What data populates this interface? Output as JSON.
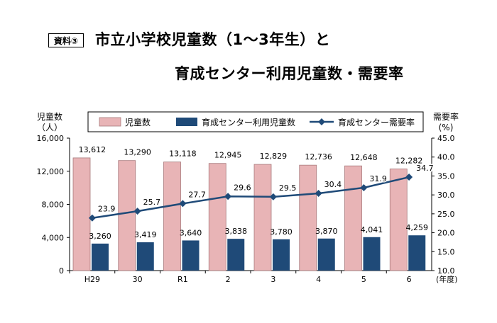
{
  "header": {
    "badge": "資料③",
    "title_line1": "市立小学校児童数（1〜3年生）と",
    "title_line2": "育成センター利用児童数・需要率"
  },
  "colors": {
    "children_bar": "#e8b4b6",
    "children_bar_stroke": "#a87a7c",
    "users_bar": "#1f4a78",
    "rate_line": "#1f4a78"
  },
  "chart_data": {
    "type": "bar",
    "categories": [
      "H29",
      "30",
      "R1",
      "2",
      "3",
      "4",
      "5",
      "6"
    ],
    "x_unit": "(年度)",
    "left_axis": {
      "label": "児童数",
      "unit": "（人）",
      "ylim": [
        0,
        16000
      ],
      "ticks": [
        "0",
        "4,000",
        "8,000",
        "12,000",
        "16,000"
      ]
    },
    "right_axis": {
      "label": "需要率",
      "unit": "(%)",
      "ylim": [
        10,
        45
      ],
      "ticks": [
        "10.0",
        "15.0",
        "20.0",
        "25.0",
        "30.0",
        "35.0",
        "40.0",
        "45.0"
      ]
    },
    "series": [
      {
        "name": "児童数",
        "type": "bar",
        "axis": "left",
        "values": [
          13612,
          13290,
          13118,
          12945,
          12829,
          12736,
          12648,
          12282
        ],
        "labels": [
          "13,612",
          "13,290",
          "13,118",
          "12,945",
          "12,829",
          "12,736",
          "12,648",
          "12,282"
        ]
      },
      {
        "name": "育成センター利用児童数",
        "type": "bar",
        "axis": "left",
        "values": [
          3260,
          3419,
          3640,
          3838,
          3780,
          3870,
          4041,
          4259
        ],
        "labels": [
          "3,260",
          "3,419",
          "3,640",
          "3,838",
          "3,780",
          "3,870",
          "4,041",
          "4,259"
        ]
      },
      {
        "name": "育成センター需要率",
        "type": "line",
        "axis": "right",
        "values": [
          23.9,
          25.7,
          27.7,
          29.6,
          29.5,
          30.4,
          31.9,
          34.7
        ],
        "labels": [
          "23.9",
          "25.7",
          "27.7",
          "29.6",
          "29.5",
          "30.4",
          "31.9",
          "34.7"
        ]
      }
    ],
    "legend_position": "top",
    "grid": false
  }
}
